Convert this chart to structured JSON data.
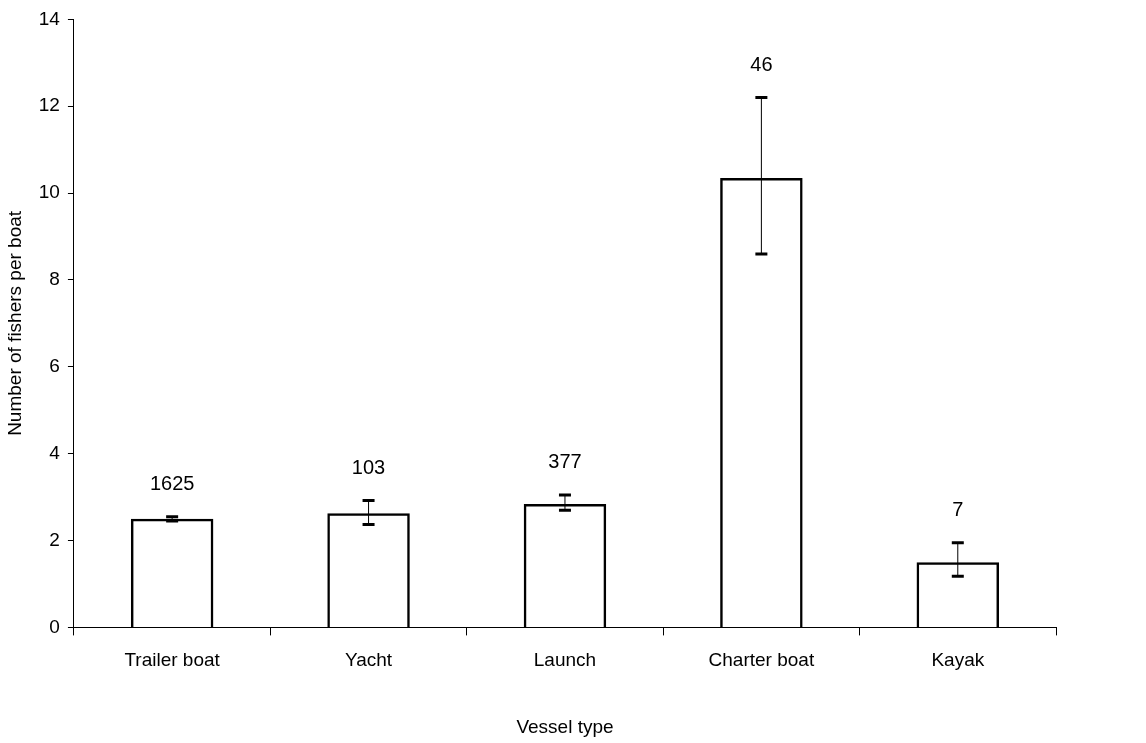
{
  "chart_data": {
    "type": "bar",
    "xlabel": "Vessel type",
    "ylabel": "Number of fishers per boat",
    "categories": [
      "Trailer boat",
      "Yacht",
      "Launch",
      "Charter boat",
      "Kayak"
    ],
    "values": [
      2.5,
      2.63,
      2.84,
      10.35,
      1.5
    ],
    "errors": [
      [
        2.45,
        2.55
      ],
      [
        2.37,
        2.92
      ],
      [
        2.7,
        3.05
      ],
      [
        8.6,
        12.2
      ],
      [
        1.18,
        1.95
      ]
    ],
    "annotations": [
      "1625",
      "103",
      "377",
      "46",
      "7"
    ],
    "color": "#000000",
    "ylim": [
      0,
      14
    ],
    "yticks": [
      0,
      2,
      4,
      6,
      8,
      10,
      12,
      14
    ],
    "grid": false,
    "legend": false
  }
}
